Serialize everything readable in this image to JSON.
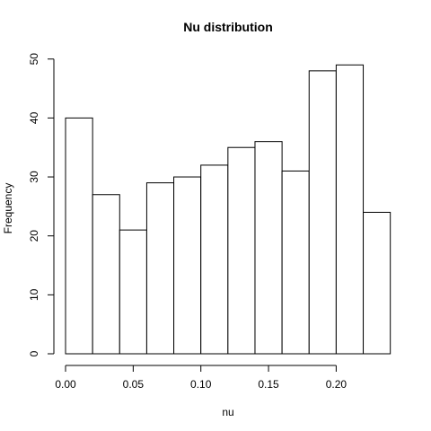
{
  "chart_data": {
    "type": "bar",
    "title": "Nu distribution",
    "xlabel": "nu",
    "ylabel": "Frequency",
    "bin_edges": [
      0.0,
      0.02,
      0.04,
      0.06,
      0.08,
      0.1,
      0.12,
      0.14,
      0.16,
      0.18,
      0.2,
      0.22,
      0.24
    ],
    "values": [
      40,
      27,
      21,
      29,
      30,
      32,
      35,
      36,
      31,
      48,
      49,
      24
    ],
    "xlim": [
      0.0,
      0.24
    ],
    "ylim": [
      0,
      50
    ],
    "x_ticks": [
      "0.00",
      "0.05",
      "0.10",
      "0.15",
      "0.20"
    ],
    "y_ticks": [
      "0",
      "10",
      "20",
      "30",
      "40",
      "50"
    ],
    "grid": false,
    "bar_fill": "#ffffff",
    "bar_stroke": "#000000"
  }
}
